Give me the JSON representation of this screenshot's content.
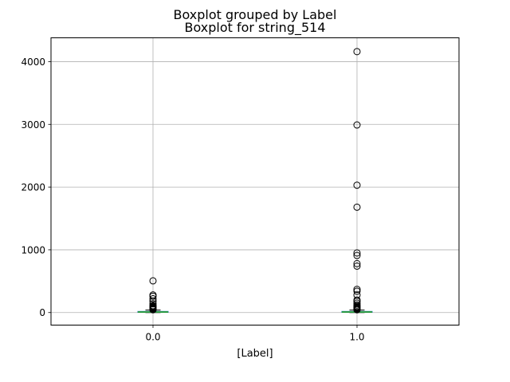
{
  "chart_data": {
    "type": "boxplot",
    "suptitle": "Boxplot grouped by Label",
    "title": "Boxplot for string_514",
    "xlabel": "[Label]",
    "ylabel": "",
    "categories": [
      "0.0",
      "1.0"
    ],
    "ylim": [
      -200,
      4380
    ],
    "yticks": [
      0,
      1000,
      2000,
      3000,
      4000
    ],
    "grid": true,
    "colors": {
      "box": "#1f77b4",
      "median": "#2ca02c",
      "whisker": "#000000",
      "grid": "#b0b0b0",
      "flier": "#000000"
    },
    "series": [
      {
        "category": "0.0",
        "q1": 3,
        "median": 8,
        "q3": 18,
        "whisker_low": 0,
        "whisker_high": 40,
        "fliers": [
          45,
          50,
          55,
          60,
          65,
          70,
          75,
          80,
          90,
          100,
          110,
          140,
          180,
          220,
          260,
          280,
          505
        ]
      },
      {
        "category": "1.0",
        "q1": 3,
        "median": 8,
        "q3": 18,
        "whisker_low": 0,
        "whisker_high": 40,
        "fliers": [
          45,
          50,
          60,
          70,
          80,
          90,
          100,
          120,
          150,
          180,
          200,
          280,
          340,
          370,
          740,
          780,
          910,
          950,
          1680,
          2030,
          2990,
          4160
        ]
      }
    ]
  }
}
